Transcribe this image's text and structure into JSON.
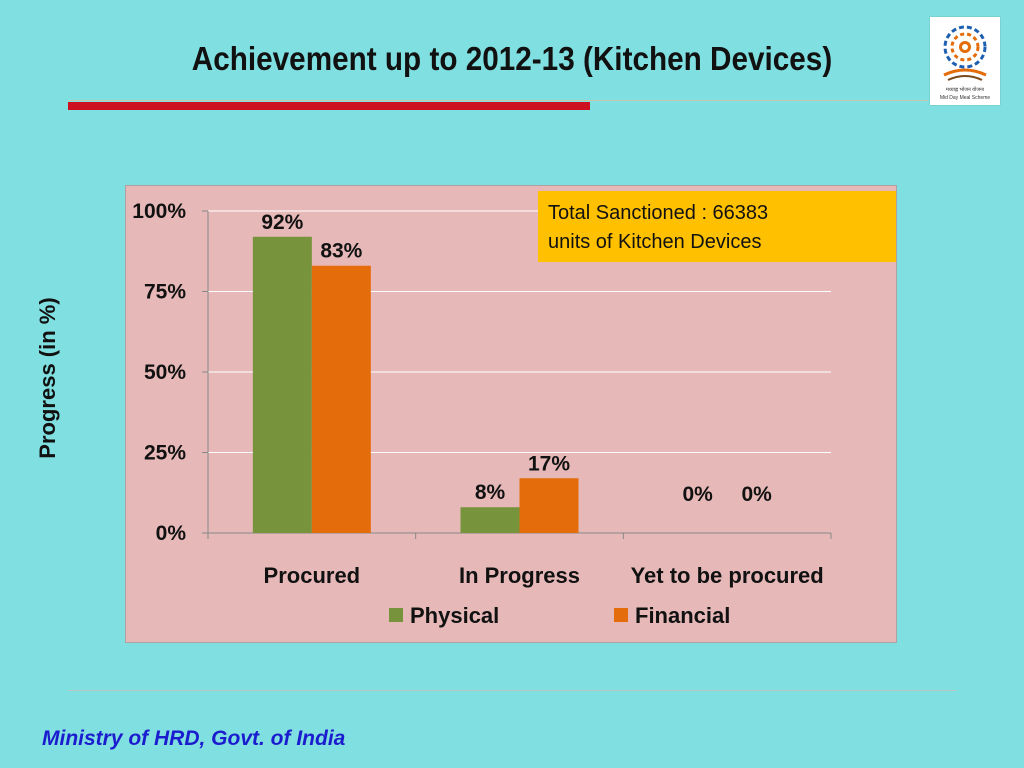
{
  "slide": {
    "title": "Achievement up to 2012-13 (Kitchen Devices)",
    "footer": "Ministry of HRD, Govt. of India",
    "logo_caption_top": "मध्याह्न भोजन योजना",
    "logo_caption_bottom": "Mid Day Meal Scheme"
  },
  "annotation": {
    "line1": "Total Sanctioned : 66383",
    "line2": "units of Kitchen Devices"
  },
  "colors": {
    "background": "#80dfe0",
    "plot_area": "#e6b9b8",
    "physical": "#77933c",
    "financial": "#e46c0a",
    "annotation_box": "#ffc000",
    "title_rule": "#cc1020",
    "footer_text": "#1c1ccf"
  },
  "chart_data": {
    "type": "bar",
    "title": "",
    "xlabel": "",
    "ylabel": "Progress (in %)",
    "categories": [
      "Procured",
      "In Progress",
      "Yet to be procured"
    ],
    "series": [
      {
        "name": "Physical",
        "values": [
          92,
          8,
          0
        ],
        "labels": [
          "92%",
          "8%",
          "0%"
        ]
      },
      {
        "name": "Financial",
        "values": [
          83,
          17,
          0
        ],
        "labels": [
          "83%",
          "17%",
          "0%"
        ]
      }
    ],
    "yticks": [
      0,
      25,
      50,
      75,
      100
    ],
    "ytick_labels": [
      "0%",
      "25%",
      "50%",
      "75%",
      "100%"
    ],
    "ylim": [
      0,
      100
    ],
    "grid": true,
    "legend": "bottom"
  }
}
